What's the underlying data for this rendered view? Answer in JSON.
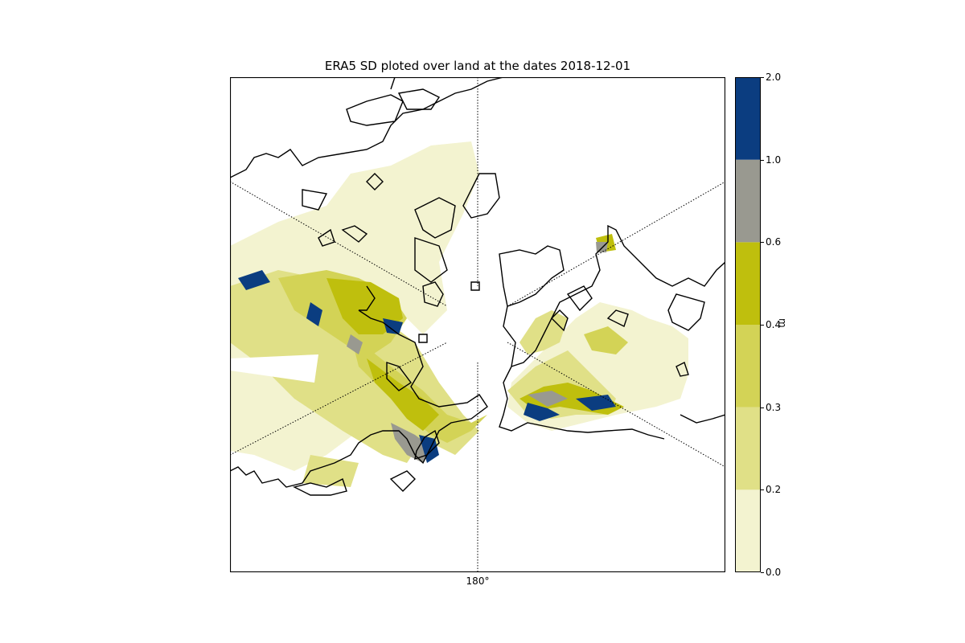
{
  "title": "ERA5 SD ploted over land at the dates 2018-12-01",
  "map": {
    "projection": "north-polar-stereographic",
    "central_longitude_label": "180°",
    "features": [
      "coastlines",
      "snow-depth-fill"
    ],
    "gridlines": "dotted"
  },
  "colorbar": {
    "unit": "m",
    "ticks": [
      "0.0",
      "0.2",
      "0.3",
      "0.4",
      "0.6",
      "1.0",
      "2.0"
    ],
    "levels": [
      {
        "min": 0.0,
        "max": 0.2,
        "color": "#f3f3d0"
      },
      {
        "min": 0.2,
        "max": 0.3,
        "color": "#e0e087"
      },
      {
        "min": 0.3,
        "max": 0.4,
        "color": "#d3d356"
      },
      {
        "min": 0.4,
        "max": 0.6,
        "color": "#bfbf0d"
      },
      {
        "min": 0.6,
        "max": 1.0,
        "color": "#999990"
      },
      {
        "min": 1.0,
        "max": 2.0,
        "color": "#0b3d80"
      }
    ]
  }
}
